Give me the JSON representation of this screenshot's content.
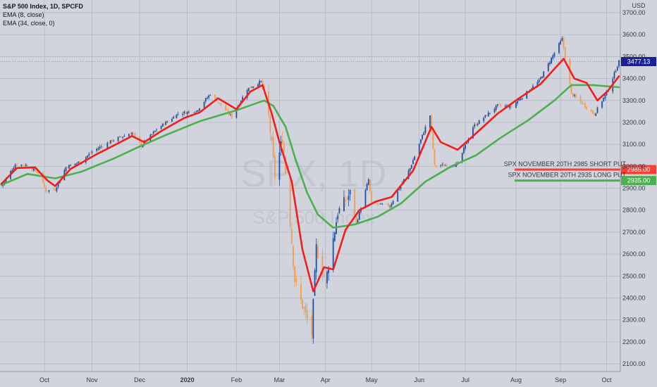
{
  "legend": {
    "symbol": "S&P 500 Index, 1D, SPCFD",
    "ema_fast": "EMA (8, close)",
    "ema_slow": "EMA (34, close, 0)"
  },
  "watermark": {
    "line1": "SPX, 1D",
    "line2": "S&P 500 Index"
  },
  "chart_data": {
    "type": "candlestick",
    "title": "S&P 500 Index, 1D, SPCFD",
    "y_unit": "USD",
    "ylim": [
      2060,
      3760
    ],
    "y_ticks": [
      2100,
      2200,
      2300,
      2400,
      2500,
      2600,
      2700,
      2800,
      2900,
      3000,
      3100,
      3200,
      3300,
      3400,
      3500,
      3600,
      3700
    ],
    "y_tick_labels": [
      "2100.00",
      "2200.00",
      "2300.00",
      "2400.00",
      "2500.00",
      "2600.00",
      "2700.00",
      "2800.00",
      "2900.00",
      "3000.00",
      "3100.00",
      "3200.00",
      "3300.00",
      "3400.00",
      "3500.00",
      "3600.00",
      "3700.00"
    ],
    "x_labels": [
      {
        "label": "Oct",
        "date": "2019-10-01"
      },
      {
        "label": "Nov",
        "date": "2019-11-01"
      },
      {
        "label": "Dec",
        "date": "2019-12-02"
      },
      {
        "label": "2020",
        "date": "2020-01-02",
        "bold": true
      },
      {
        "label": "Feb",
        "date": "2020-02-03"
      },
      {
        "label": "Mar",
        "date": "2020-03-02"
      },
      {
        "label": "Apr",
        "date": "2020-04-01"
      },
      {
        "label": "May",
        "date": "2020-05-01"
      },
      {
        "label": "Jun",
        "date": "2020-06-01"
      },
      {
        "label": "Jul",
        "date": "2020-07-01"
      },
      {
        "label": "Aug",
        "date": "2020-08-03"
      },
      {
        "label": "Sep",
        "date": "2020-09-01"
      },
      {
        "label": "Oct",
        "date": "2020-10-01"
      }
    ],
    "price_path": [
      {
        "date": "2019-09-03",
        "close": 2910
      },
      {
        "date": "2019-09-12",
        "close": 3008
      },
      {
        "date": "2019-09-19",
        "close": 3006
      },
      {
        "date": "2019-09-27",
        "close": 2970
      },
      {
        "date": "2019-10-02",
        "close": 2888
      },
      {
        "date": "2019-10-08",
        "close": 2895
      },
      {
        "date": "2019-10-15",
        "close": 2996
      },
      {
        "date": "2019-10-25",
        "close": 3023
      },
      {
        "date": "2019-11-01",
        "close": 3067
      },
      {
        "date": "2019-11-15",
        "close": 3120
      },
      {
        "date": "2019-11-27",
        "close": 3153
      },
      {
        "date": "2019-12-03",
        "close": 3093
      },
      {
        "date": "2019-12-13",
        "close": 3168
      },
      {
        "date": "2019-12-27",
        "close": 3240
      },
      {
        "date": "2020-01-08",
        "close": 3253
      },
      {
        "date": "2020-01-17",
        "close": 3330
      },
      {
        "date": "2020-01-31",
        "close": 3225
      },
      {
        "date": "2020-02-10",
        "close": 3352
      },
      {
        "date": "2020-02-19",
        "close": 3386
      },
      {
        "date": "2020-02-24",
        "close": 3226
      },
      {
        "date": "2020-02-28",
        "close": 2954
      },
      {
        "date": "2020-03-04",
        "close": 3130
      },
      {
        "date": "2020-03-09",
        "close": 2746
      },
      {
        "date": "2020-03-12",
        "close": 2480
      },
      {
        "date": "2020-03-16",
        "close": 2386
      },
      {
        "date": "2020-03-23",
        "close": 2237
      },
      {
        "date": "2020-03-26",
        "close": 2630
      },
      {
        "date": "2020-04-01",
        "close": 2470
      },
      {
        "date": "2020-04-09",
        "close": 2790
      },
      {
        "date": "2020-04-17",
        "close": 2875
      },
      {
        "date": "2020-04-21",
        "close": 2737
      },
      {
        "date": "2020-04-29",
        "close": 2939
      },
      {
        "date": "2020-05-01",
        "close": 2830
      },
      {
        "date": "2020-05-13",
        "close": 2820
      },
      {
        "date": "2020-05-26",
        "close": 2991
      },
      {
        "date": "2020-06-08",
        "close": 3232
      },
      {
        "date": "2020-06-11",
        "close": 3002
      },
      {
        "date": "2020-06-26",
        "close": 3009
      },
      {
        "date": "2020-07-06",
        "close": 3180
      },
      {
        "date": "2020-07-22",
        "close": 3276
      },
      {
        "date": "2020-07-31",
        "close": 3271
      },
      {
        "date": "2020-08-18",
        "close": 3389
      },
      {
        "date": "2020-09-02",
        "close": 3580
      },
      {
        "date": "2020-09-08",
        "close": 3331
      },
      {
        "date": "2020-09-23",
        "close": 3237
      },
      {
        "date": "2020-10-02",
        "close": 3348
      },
      {
        "date": "2020-10-09",
        "close": 3477
      }
    ],
    "ema_8": [
      {
        "date": "2019-09-03",
        "value": 2920
      },
      {
        "date": "2019-09-13",
        "value": 2992
      },
      {
        "date": "2019-09-25",
        "value": 2995
      },
      {
        "date": "2019-10-03",
        "value": 2935
      },
      {
        "date": "2019-10-08",
        "value": 2910
      },
      {
        "date": "2019-10-18",
        "value": 2988
      },
      {
        "date": "2019-11-04",
        "value": 3055
      },
      {
        "date": "2019-11-18",
        "value": 3105
      },
      {
        "date": "2019-11-27",
        "value": 3138
      },
      {
        "date": "2019-12-05",
        "value": 3110
      },
      {
        "date": "2019-12-16",
        "value": 3160
      },
      {
        "date": "2019-12-31",
        "value": 3220
      },
      {
        "date": "2020-01-10",
        "value": 3245
      },
      {
        "date": "2020-01-22",
        "value": 3310
      },
      {
        "date": "2020-02-03",
        "value": 3260
      },
      {
        "date": "2020-02-12",
        "value": 3340
      },
      {
        "date": "2020-02-20",
        "value": 3370
      },
      {
        "date": "2020-02-26",
        "value": 3240
      },
      {
        "date": "2020-03-02",
        "value": 3110
      },
      {
        "date": "2020-03-10",
        "value": 2930
      },
      {
        "date": "2020-03-17",
        "value": 2620
      },
      {
        "date": "2020-03-24",
        "value": 2430
      },
      {
        "date": "2020-03-31",
        "value": 2540
      },
      {
        "date": "2020-04-06",
        "value": 2530
      },
      {
        "date": "2020-04-14",
        "value": 2710
      },
      {
        "date": "2020-04-23",
        "value": 2800
      },
      {
        "date": "2020-05-04",
        "value": 2840
      },
      {
        "date": "2020-05-14",
        "value": 2860
      },
      {
        "date": "2020-05-28",
        "value": 2980
      },
      {
        "date": "2020-06-09",
        "value": 3180
      },
      {
        "date": "2020-06-15",
        "value": 3110
      },
      {
        "date": "2020-06-26",
        "value": 3075
      },
      {
        "date": "2020-07-08",
        "value": 3150
      },
      {
        "date": "2020-07-22",
        "value": 3240
      },
      {
        "date": "2020-08-05",
        "value": 3310
      },
      {
        "date": "2020-08-19",
        "value": 3375
      },
      {
        "date": "2020-09-03",
        "value": 3490
      },
      {
        "date": "2020-09-10",
        "value": 3400
      },
      {
        "date": "2020-09-18",
        "value": 3380
      },
      {
        "date": "2020-09-25",
        "value": 3300
      },
      {
        "date": "2020-10-02",
        "value": 3345
      },
      {
        "date": "2020-10-09",
        "value": 3410
      }
    ],
    "ema_34": [
      {
        "date": "2019-09-03",
        "value": 2915
      },
      {
        "date": "2019-09-20",
        "value": 2965
      },
      {
        "date": "2019-10-08",
        "value": 2945
      },
      {
        "date": "2019-10-25",
        "value": 2975
      },
      {
        "date": "2019-11-15",
        "value": 3035
      },
      {
        "date": "2019-12-02",
        "value": 3090
      },
      {
        "date": "2019-12-20",
        "value": 3145
      },
      {
        "date": "2020-01-10",
        "value": 3205
      },
      {
        "date": "2020-02-03",
        "value": 3255
      },
      {
        "date": "2020-02-21",
        "value": 3300
      },
      {
        "date": "2020-02-27",
        "value": 3275
      },
      {
        "date": "2020-03-06",
        "value": 3180
      },
      {
        "date": "2020-03-13",
        "value": 3020
      },
      {
        "date": "2020-03-20",
        "value": 2880
      },
      {
        "date": "2020-03-27",
        "value": 2780
      },
      {
        "date": "2020-04-06",
        "value": 2720
      },
      {
        "date": "2020-04-20",
        "value": 2735
      },
      {
        "date": "2020-05-05",
        "value": 2770
      },
      {
        "date": "2020-05-20",
        "value": 2830
      },
      {
        "date": "2020-06-05",
        "value": 2930
      },
      {
        "date": "2020-06-22",
        "value": 3000
      },
      {
        "date": "2020-07-08",
        "value": 3050
      },
      {
        "date": "2020-07-24",
        "value": 3130
      },
      {
        "date": "2020-08-11",
        "value": 3210
      },
      {
        "date": "2020-08-28",
        "value": 3300
      },
      {
        "date": "2020-09-08",
        "value": 3370
      },
      {
        "date": "2020-09-22",
        "value": 3370
      },
      {
        "date": "2020-10-09",
        "value": 3360
      }
    ],
    "series": [
      {
        "name": "EMA (8, close)",
        "color": "#f21d1d"
      },
      {
        "name": "EMA (34, close, 0)",
        "color": "#4caf50"
      }
    ],
    "horizontal_levels": [
      {
        "label": "SPX NOVEMBER 20TH 2985 SHORT PUT",
        "value": 2985,
        "price_label": "2985.00",
        "color": "#f44336"
      },
      {
        "label": "SPX NOVEMBER 20TH 2935 LONG PUT",
        "value": 2935,
        "price_label": "2935.00",
        "color": "#4caf50"
      }
    ],
    "last_price": {
      "value": 3477.13,
      "label": "3477.13",
      "color": "#1a1f9c"
    },
    "colors": {
      "up": "#1e50a2",
      "down": "#f59c4c",
      "background": "#d1d4dc",
      "grid": "#aeb2bd"
    },
    "grid": true
  }
}
